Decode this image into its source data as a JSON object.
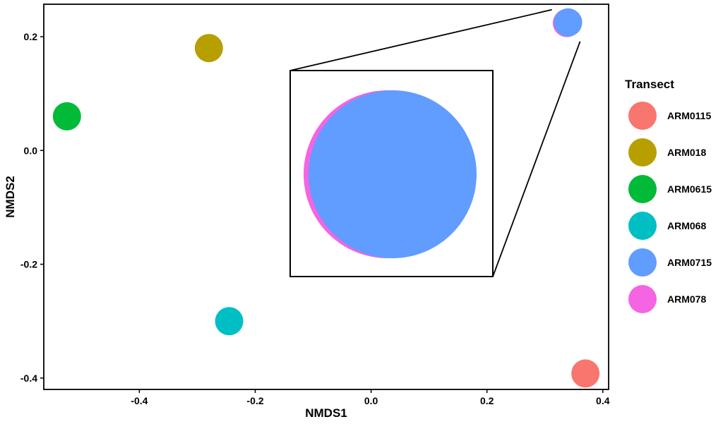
{
  "chart_data": {
    "type": "scatter",
    "xlabel": "NMDS1",
    "ylabel": "NMDS2",
    "xlim": [
      -0.565,
      0.41
    ],
    "ylim": [
      -0.42,
      0.257
    ],
    "x_ticks": [
      -0.4,
      -0.2,
      0.0,
      0.2,
      0.4
    ],
    "x_tick_labels": [
      "-0.4",
      "-0.2",
      "0.0",
      "0.2",
      "0.4"
    ],
    "y_ticks": [
      0.2,
      0.0,
      -0.2,
      -0.4
    ],
    "y_tick_labels": [
      "0.2",
      "0.0",
      "-0.2",
      "-0.4"
    ],
    "grid": false,
    "legend": {
      "title": "Transect",
      "placement": "right"
    },
    "series": [
      {
        "name": "ARM0115",
        "color": "#F8766D",
        "x": [
          0.37
        ],
        "y": [
          -0.392
        ]
      },
      {
        "name": "ARM018",
        "color": "#B79F00",
        "x": [
          -0.28
        ],
        "y": [
          0.18
        ]
      },
      {
        "name": "ARM0615",
        "color": "#00BA38",
        "x": [
          -0.525
        ],
        "y": [
          0.06
        ]
      },
      {
        "name": "ARM068",
        "color": "#00BFC4",
        "x": [
          -0.245
        ],
        "y": [
          -0.3
        ]
      },
      {
        "name": "ARM0715",
        "color": "#619CFF",
        "x": [
          0.34
        ],
        "y": [
          0.225
        ]
      },
      {
        "name": "ARM078",
        "color": "#F564E3",
        "x": [
          0.338
        ],
        "y": [
          0.224
        ]
      }
    ],
    "inset": {
      "description_of": "zoomed view of overlapping ARM0715 and ARM078 points",
      "front_series": "ARM0715",
      "back_series": "ARM078"
    }
  }
}
